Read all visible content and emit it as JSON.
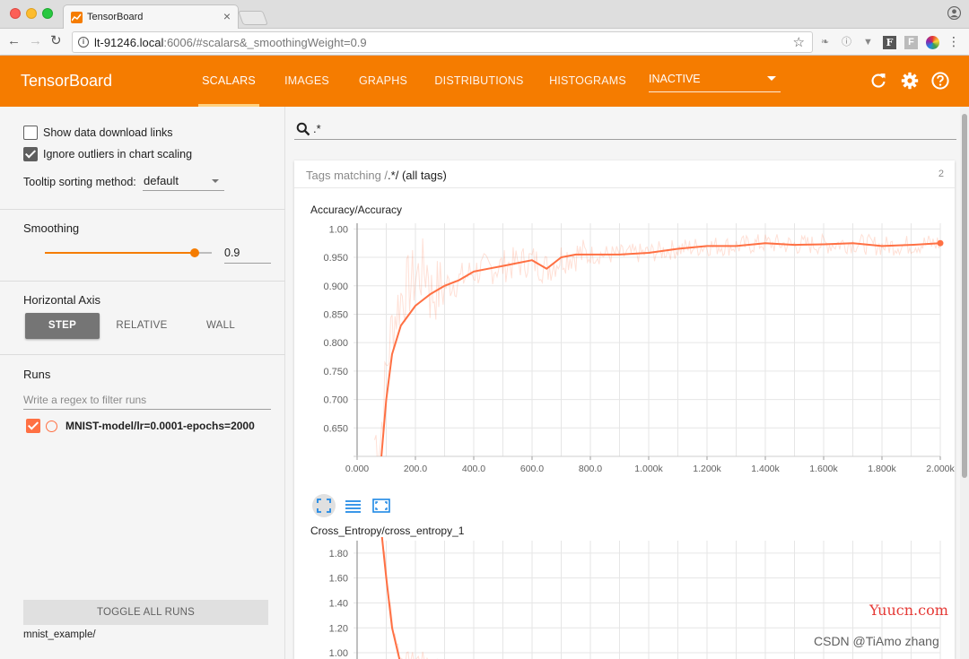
{
  "browser": {
    "tab_title": "TensorBoard",
    "tab_close": "×",
    "url_host": "lt-91246.local",
    "url_rest": ":6006/#scalars&_smoothingWeight=0.9"
  },
  "header": {
    "title": "TensorBoard",
    "tabs": [
      {
        "label": "SCALARS"
      },
      {
        "label": "IMAGES"
      },
      {
        "label": "GRAPHS"
      },
      {
        "label": "DISTRIBUTIONS"
      },
      {
        "label": "HISTOGRAMS"
      }
    ],
    "inactive_dropdown": "INACTIVE",
    "accent_color": "#f57c00"
  },
  "sidebar": {
    "show_download_links": {
      "label": "Show data download links",
      "checked": false
    },
    "ignore_outliers": {
      "label": "Ignore outliers in chart scaling",
      "checked": true
    },
    "tooltip_sorting": {
      "label": "Tooltip sorting method:",
      "value": "default"
    },
    "smoothing": {
      "label": "Smoothing",
      "value": "0.9",
      "fraction": 0.9
    },
    "horizontal_axis": {
      "label": "Horizontal Axis",
      "options": [
        "STEP",
        "RELATIVE",
        "WALL"
      ],
      "selected": "STEP"
    },
    "runs": {
      "label": "Runs",
      "filter_placeholder": "Write a regex to filter runs",
      "items": [
        {
          "name": "MNIST-model/lr=0.0001-epochs=2000",
          "color": "#ff7043",
          "checked": true
        }
      ]
    },
    "toggle_all_runs": "TOGGLE ALL RUNS",
    "logdir": "mnist_example/"
  },
  "main": {
    "search_value": ".*",
    "tags_prefix": "Tags matching /",
    "tags_rest": ".*/ (all tags)",
    "tag_count": "2"
  },
  "chart_data": [
    {
      "type": "line",
      "title": "Accuracy/Accuracy",
      "xlim": [
        0,
        2000
      ],
      "ylim": [
        0.6,
        1.01
      ],
      "x_ticks": [
        "0.000",
        "200.0",
        "400.0",
        "600.0",
        "800.0",
        "1.000k",
        "1.200k",
        "1.400k",
        "1.600k",
        "1.800k",
        "2.000k"
      ],
      "y_ticks": [
        "1.00",
        "0.950",
        "0.900",
        "0.850",
        "0.800",
        "0.750",
        "0.700",
        "0.650"
      ],
      "grid": true,
      "series": [
        {
          "color": "#ff7043",
          "x": [
            80,
            100,
            120,
            150,
            200,
            250,
            300,
            350,
            400,
            450,
            500,
            550,
            600,
            650,
            700,
            750,
            800,
            900,
            1000,
            1100,
            1200,
            1300,
            1400,
            1500,
            1600,
            1700,
            1800,
            1900,
            2000
          ],
          "y": [
            0.58,
            0.7,
            0.78,
            0.83,
            0.865,
            0.885,
            0.9,
            0.91,
            0.925,
            0.93,
            0.935,
            0.94,
            0.945,
            0.93,
            0.95,
            0.955,
            0.955,
            0.955,
            0.958,
            0.965,
            0.97,
            0.97,
            0.975,
            0.972,
            0.973,
            0.975,
            0.97,
            0.972,
            0.975
          ]
        }
      ]
    },
    {
      "type": "line",
      "title": "Cross_Entropy/cross_entropy_1",
      "xlim": [
        0,
        2000
      ],
      "ylim": [
        0.95,
        1.9
      ],
      "y_ticks": [
        "1.80",
        "1.60",
        "1.40",
        "1.20",
        "1.00"
      ],
      "grid": true,
      "series": [
        {
          "color": "#ff7043",
          "x": [
            80,
            100,
            120,
            150
          ],
          "y": [
            2.05,
            1.6,
            1.2,
            0.9
          ]
        }
      ]
    }
  ],
  "watermarks": [
    "Yuucn.com",
    "CSDN @TiAmo zhang"
  ]
}
